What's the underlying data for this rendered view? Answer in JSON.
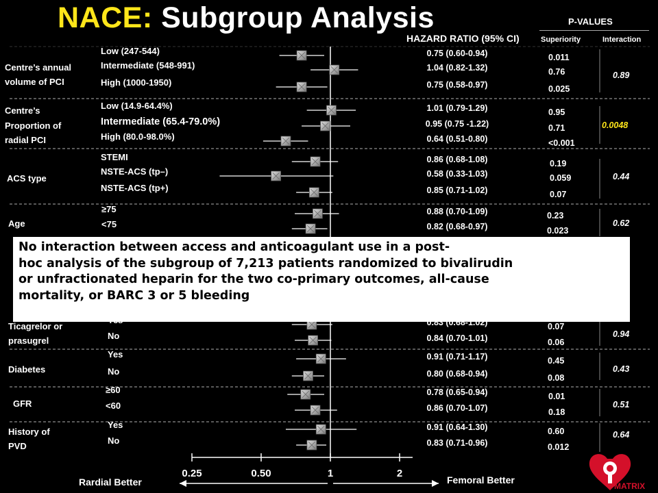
{
  "slide": {
    "title_part1": "NACE:",
    "title_part2": "Subgroup Analysis",
    "hr_header": "HAZARD RATIO (95% CI)",
    "pvalues_header": "P-VALUES",
    "col_superiority": "Superiority",
    "col_interaction": "Interaction",
    "left_direction": "Rardial Better",
    "right_direction": "Femoral Better",
    "logo_text": "MATRIX",
    "note_lines": [
      "No interaction between access and anticoagulant use in a post-",
      "hoc analysis of the subgroup of 7,213 patients randomized to bivalirudin",
      " or unfractionated heparin for the two co-primary outcomes, all-cause",
      "  mortality, or BARC 3 or 5 bleeding"
    ]
  },
  "chart_data": {
    "type": "forest",
    "x_axis": {
      "scale": "log",
      "ticks": [
        0.25,
        0.5,
        1,
        2
      ],
      "tick_labels": [
        "0.25",
        "0.50",
        "1",
        "2"
      ],
      "range": [
        0.25,
        2.2
      ],
      "reference": 1
    },
    "colors": {
      "background": "#000000",
      "highlight": "#ffe61a",
      "marker": "#b0b0b0",
      "ci_line": "#ffffff",
      "separator": "#777777"
    },
    "groups": [
      {
        "name_lines": [
          "Centre’s annual",
          "volume of PCI"
        ],
        "p_interaction": "0.89",
        "highlight": false,
        "rows": [
          {
            "label": "Low (247-544)",
            "hr": 0.75,
            "lo": 0.6,
            "hi": 0.94,
            "hr_text": "0.75 (0.60-0.94)",
            "p_sup": "0.011"
          },
          {
            "label": "Intermediate (548-991)",
            "hr": 1.04,
            "lo": 0.82,
            "hi": 1.32,
            "hr_text": "1.04 (0.82-1.32)",
            "p_sup": "0.76"
          },
          {
            "label": "High (1000-1950)",
            "hr": 0.75,
            "lo": 0.58,
            "hi": 0.97,
            "hr_text": "0.75 (0.58-0.97)",
            "p_sup": "0.025"
          }
        ]
      },
      {
        "name_lines": [
          "Centre’s",
          "Proportion of",
          "radial PCI"
        ],
        "p_interaction": "0.0048",
        "highlight": true,
        "rows": [
          {
            "label": "Low (14.9-64.4%)",
            "hr": 1.01,
            "lo": 0.79,
            "hi": 1.29,
            "hr_text": "1.01 (0.79-1.29)",
            "p_sup": "0.95"
          },
          {
            "label": "Intermediate (65.4-79.0%)",
            "hr": 0.95,
            "lo": 0.75,
            "hi": 1.22,
            "hr_text": "0.95 (0.75 -1.22)",
            "p_sup": "0.71"
          },
          {
            "label": "High (80.0-98.0%)",
            "hr": 0.64,
            "lo": 0.51,
            "hi": 0.8,
            "hr_text": "0.64 (0.51-0.80)",
            "p_sup": "<0.001"
          }
        ]
      },
      {
        "name_lines": [
          "ACS type"
        ],
        "p_interaction": "0.44",
        "highlight": false,
        "rows": [
          {
            "label": "STEMI",
            "hr": 0.86,
            "lo": 0.68,
            "hi": 1.08,
            "hr_text": "0.86 (0.68-1.08)",
            "p_sup": "0.19"
          },
          {
            "label": "NSTE-ACS (tp–)",
            "hr": 0.58,
            "lo": 0.33,
            "hi": 1.03,
            "hr_text": "0.58 (0.33-1.03)",
            "p_sup": "0.059"
          },
          {
            "label": "NSTE-ACS (tp+)",
            "hr": 0.85,
            "lo": 0.71,
            "hi": 1.02,
            "hr_text": "0.85 (0.71-1.02)",
            "p_sup": "0.07"
          }
        ]
      },
      {
        "name_lines": [
          "Age"
        ],
        "p_interaction": "0.62",
        "highlight": false,
        "rows": [
          {
            "label": "≥75",
            "hr": 0.88,
            "lo": 0.7,
            "hi": 1.09,
            "hr_text": "0.88 (0.70-1.09)",
            "p_sup": "0.23"
          },
          {
            "label": "<75",
            "hr": 0.82,
            "lo": 0.68,
            "hi": 0.97,
            "hr_text": "0.82 (0.68-0.97)",
            "p_sup": "0.023"
          }
        ]
      },
      {
        "name_lines": [
          "Ticagrelor or",
          "prasugrel"
        ],
        "p_interaction": "0.94",
        "highlight": false,
        "rows": [
          {
            "label": "Yes",
            "hr": 0.83,
            "lo": 0.68,
            "hi": 1.02,
            "hr_text": "0.83 (0.68-1.02)",
            "p_sup": "0.07"
          },
          {
            "label": "No",
            "hr": 0.84,
            "lo": 0.7,
            "hi": 1.01,
            "hr_text": "0.84 (0.70-1.01)",
            "p_sup": "0.06"
          }
        ]
      },
      {
        "name_lines": [
          "Diabetes"
        ],
        "p_interaction": "0.43",
        "highlight": false,
        "rows": [
          {
            "label": "Yes",
            "hr": 0.91,
            "lo": 0.71,
            "hi": 1.17,
            "hr_text": "0.91 (0.71-1.17)",
            "p_sup": "0.45"
          },
          {
            "label": "No",
            "hr": 0.8,
            "lo": 0.68,
            "hi": 0.94,
            "hr_text": "0.80 (0.68-0.94)",
            "p_sup": "0.08"
          }
        ]
      },
      {
        "name_lines": [
          "GFR"
        ],
        "p_interaction": "0.51",
        "highlight": false,
        "rows": [
          {
            "label": "≥60",
            "hr": 0.78,
            "lo": 0.65,
            "hi": 0.94,
            "hr_text": "0.78 (0.65-0.94)",
            "p_sup": "0.01"
          },
          {
            "label": "<60",
            "hr": 0.86,
            "lo": 0.7,
            "hi": 1.07,
            "hr_text": "0.86 (0.70-1.07)",
            "p_sup": "0.18"
          }
        ]
      },
      {
        "name_lines": [
          "History of",
          "PVD"
        ],
        "p_interaction": "0.64",
        "highlight": false,
        "rows": [
          {
            "label": "Yes",
            "hr": 0.91,
            "lo": 0.64,
            "hi": 1.3,
            "hr_text": "0.91 (0.64-1.30)",
            "p_sup": "0.60"
          },
          {
            "label": "No",
            "hr": 0.83,
            "lo": 0.71,
            "hi": 0.96,
            "hr_text": "0.83 (0.71-0.96)",
            "p_sup": "0.012"
          }
        ]
      }
    ]
  }
}
